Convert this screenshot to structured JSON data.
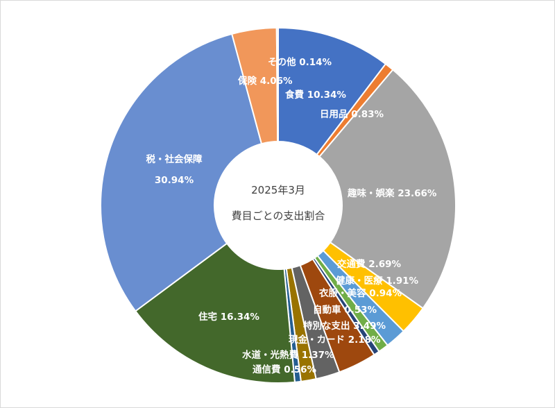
{
  "chart_data": {
    "type": "pie",
    "variant": "doughnut",
    "title": "2025年3月",
    "subtitle": "費目ごとの支出割合",
    "unit": "%",
    "slices": [
      {
        "name": "食費",
        "label": "食費 10.34%",
        "value": 10.34,
        "color": "#4472c4"
      },
      {
        "name": "日用品",
        "label": "日用品 0.83%",
        "value": 0.83,
        "color": "#ed7d31"
      },
      {
        "name": "趣味・娯楽",
        "label": "趣味・娯楽 23.66%",
        "value": 23.66,
        "color": "#a5a5a5"
      },
      {
        "name": "交通費",
        "label": "交通費 2.69%",
        "value": 2.69,
        "color": "#ffc000"
      },
      {
        "name": "健康・医療",
        "label": "健康・医療 1.91%",
        "value": 1.91,
        "color": "#5b9bd5"
      },
      {
        "name": "衣服・美容",
        "label": "衣服・美容 0.94%",
        "value": 0.94,
        "color": "#70ad47"
      },
      {
        "name": "自動車",
        "label": "自動車 0.53%",
        "value": 0.53,
        "color": "#264478"
      },
      {
        "name": "特別な支出",
        "label": "特別な支出 3.49%",
        "value": 3.49,
        "color": "#9e480e"
      },
      {
        "name": "現金・カード",
        "label": "現金・カード 2.18%",
        "value": 2.18,
        "color": "#636363"
      },
      {
        "name": "水道・光熱費",
        "label": "水道・光熱費 1.37%",
        "value": 1.37,
        "color": "#997300"
      },
      {
        "name": "通信費",
        "label": "通信費 0.56%",
        "value": 0.56,
        "color": "#255e91"
      },
      {
        "name": "住宅",
        "label": "住宅 16.34%",
        "value": 16.34,
        "color": "#43682b"
      },
      {
        "name": "税・社会保障",
        "label": "税・社会保障",
        "label2": "30.94%",
        "value": 30.94,
        "color": "#698ed0"
      },
      {
        "name": "保険",
        "label": "保険 4.06%",
        "value": 4.06,
        "color": "#f1975a"
      },
      {
        "name": "その他",
        "label": "その他 0.14%",
        "value": 0.14,
        "color": "#b7b7b7"
      }
    ]
  }
}
